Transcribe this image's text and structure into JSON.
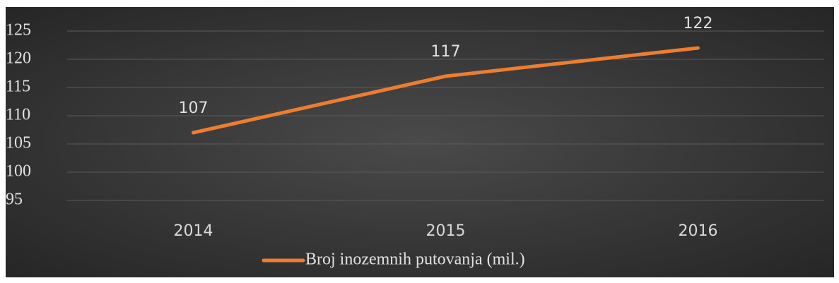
{
  "chart_data": {
    "type": "line",
    "categories": [
      "2014",
      "2015",
      "2016"
    ],
    "series": [
      {
        "name": "Broj inozemnih putovanja (mil.)",
        "color": "#ed7d31",
        "values": [
          107,
          117,
          122
        ]
      }
    ],
    "ylim": [
      95,
      125
    ],
    "yticks": [
      95,
      100,
      105,
      110,
      115,
      120,
      125
    ],
    "grid": true,
    "legend": "bottom"
  }
}
